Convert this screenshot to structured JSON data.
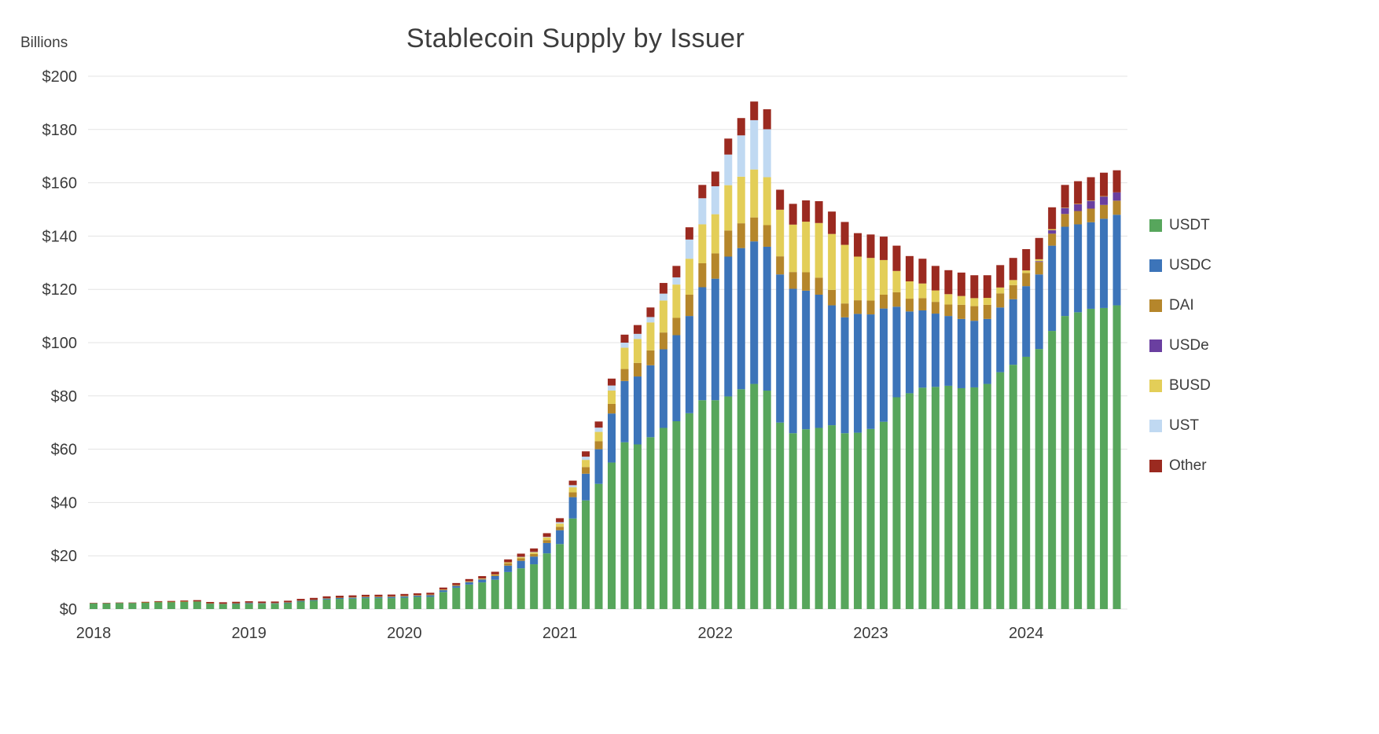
{
  "chart_data": {
    "type": "bar",
    "stacked": true,
    "title": "Stablecoin Supply by Issuer",
    "y_axis_label": "Billions",
    "ylim": [
      0,
      200
    ],
    "y_tick_step": 20,
    "y_ticks": [
      "$0",
      "$20",
      "$40",
      "$60",
      "$80",
      "$100",
      "$120",
      "$140",
      "$160",
      "$180",
      "$200"
    ],
    "x_tick_labels": [
      "2018",
      "2019",
      "2020",
      "2021",
      "2022",
      "2023",
      "2024"
    ],
    "grid": true,
    "legend_position": "right",
    "background_color": "#ffffff",
    "gridline_color": "#e3e3e3",
    "text_color": "#3b3b3b",
    "months": [
      "2018-01",
      "2018-02",
      "2018-03",
      "2018-04",
      "2018-05",
      "2018-06",
      "2018-07",
      "2018-08",
      "2018-09",
      "2018-10",
      "2018-11",
      "2018-12",
      "2019-01",
      "2019-02",
      "2019-03",
      "2019-04",
      "2019-05",
      "2019-06",
      "2019-07",
      "2019-08",
      "2019-09",
      "2019-10",
      "2019-11",
      "2019-12",
      "2020-01",
      "2020-02",
      "2020-03",
      "2020-04",
      "2020-05",
      "2020-06",
      "2020-07",
      "2020-08",
      "2020-09",
      "2020-10",
      "2020-11",
      "2020-12",
      "2021-01",
      "2021-02",
      "2021-03",
      "2021-04",
      "2021-05",
      "2021-06",
      "2021-07",
      "2021-08",
      "2021-09",
      "2021-10",
      "2021-11",
      "2021-12",
      "2022-01",
      "2022-02",
      "2022-03",
      "2022-04",
      "2022-05",
      "2022-06",
      "2022-07",
      "2022-08",
      "2022-09",
      "2022-10",
      "2022-11",
      "2022-12",
      "2023-01",
      "2023-02",
      "2023-03",
      "2023-04",
      "2023-05",
      "2023-06",
      "2023-07",
      "2023-08",
      "2023-09",
      "2023-10",
      "2023-11",
      "2023-12",
      "2024-01",
      "2024-02",
      "2024-03",
      "2024-04",
      "2024-05",
      "2024-06",
      "2024-07",
      "2024-08"
    ],
    "series": [
      {
        "name": "USDT",
        "color": "#57a65c",
        "values": [
          2.2,
          2.2,
          2.3,
          2.3,
          2.5,
          2.7,
          2.7,
          2.8,
          2.8,
          2.0,
          1.8,
          1.9,
          2.0,
          2.0,
          2.0,
          2.2,
          2.8,
          3.1,
          3.6,
          3.8,
          3.9,
          4.1,
          4.1,
          4.1,
          4.3,
          4.6,
          4.6,
          6.4,
          8.0,
          9.2,
          10.0,
          11.0,
          13.9,
          15.3,
          16.8,
          20.9,
          24.4,
          34.0,
          40.8,
          47.0,
          55.0,
          62.6,
          61.8,
          64.5,
          68.0,
          70.5,
          73.5,
          78.4,
          78.4,
          79.8,
          82.5,
          84.5,
          82.0,
          70.0,
          66.0,
          67.5,
          68.0,
          69.0,
          66.0,
          66.2,
          67.6,
          70.3,
          79.5,
          81.0,
          83.1,
          83.4,
          83.8,
          82.9,
          83.2,
          84.5,
          88.9,
          91.7,
          94.7,
          97.6,
          104.4,
          110.0,
          111.4,
          112.7,
          113.0,
          114.0
        ]
      },
      {
        "name": "USDC",
        "color": "#3c74b9",
        "values": [
          0,
          0,
          0,
          0,
          0,
          0,
          0,
          0,
          0.1,
          0.15,
          0.18,
          0.26,
          0.35,
          0.25,
          0.24,
          0.29,
          0.33,
          0.36,
          0.4,
          0.43,
          0.45,
          0.44,
          0.46,
          0.52,
          0.52,
          0.45,
          0.68,
          0.73,
          0.72,
          0.93,
          1.1,
          1.4,
          2.4,
          2.8,
          2.9,
          3.9,
          5.2,
          8.0,
          10.0,
          13.0,
          18.4,
          23.0,
          25.5,
          27.0,
          29.5,
          32.3,
          36.5,
          42.4,
          45.6,
          52.5,
          53.0,
          53.5,
          54.0,
          55.6,
          54.2,
          52.0,
          50.0,
          45.0,
          43.5,
          44.6,
          43.0,
          42.5,
          34.0,
          30.7,
          29.0,
          27.5,
          26.2,
          26.0,
          25.0,
          24.4,
          24.3,
          24.6,
          26.5,
          28.0,
          32.0,
          33.5,
          33.0,
          32.5,
          33.5,
          34.0
        ]
      },
      {
        "name": "DAI",
        "color": "#b5862b",
        "values": [
          0,
          0,
          0,
          0,
          0.02,
          0.03,
          0.04,
          0.05,
          0.05,
          0.06,
          0.07,
          0.07,
          0.08,
          0.08,
          0.09,
          0.09,
          0.1,
          0.08,
          0.08,
          0.08,
          0.08,
          0.09,
          0.1,
          0.1,
          0.11,
          0.12,
          0.09,
          0.09,
          0.12,
          0.13,
          0.19,
          0.41,
          0.89,
          0.93,
          1.0,
          1.1,
          1.3,
          1.8,
          2.5,
          3.0,
          3.6,
          4.5,
          5.1,
          5.6,
          6.3,
          6.5,
          8.0,
          9.0,
          9.5,
          9.8,
          9.3,
          9.0,
          8.1,
          6.8,
          6.3,
          6.9,
          6.4,
          5.8,
          5.2,
          5.1,
          5.2,
          5.2,
          5.4,
          4.8,
          4.6,
          4.4,
          4.3,
          5.3,
          5.5,
          5.3,
          5.3,
          5.3,
          4.9,
          4.7,
          4.5,
          4.8,
          5.0,
          5.1,
          5.2,
          5.3
        ]
      },
      {
        "name": "USDe",
        "color": "#6a3fa0",
        "values": [
          0,
          0,
          0,
          0,
          0,
          0,
          0,
          0,
          0,
          0,
          0,
          0,
          0,
          0,
          0,
          0,
          0,
          0,
          0,
          0,
          0,
          0,
          0,
          0,
          0,
          0,
          0,
          0,
          0,
          0,
          0,
          0,
          0,
          0,
          0,
          0,
          0,
          0,
          0,
          0,
          0,
          0,
          0,
          0,
          0,
          0,
          0,
          0,
          0,
          0,
          0,
          0,
          0,
          0,
          0,
          0,
          0,
          0,
          0,
          0,
          0,
          0,
          0,
          0,
          0,
          0,
          0,
          0,
          0,
          0,
          0,
          0,
          0,
          0.3,
          1.3,
          2.3,
          2.6,
          3.0,
          3.2,
          3.1
        ]
      },
      {
        "name": "BUSD",
        "color": "#e3ce58",
        "values": [
          0,
          0,
          0,
          0,
          0,
          0,
          0,
          0,
          0,
          0,
          0,
          0,
          0,
          0,
          0,
          0,
          0,
          0,
          0,
          0,
          0.01,
          0.02,
          0.02,
          0.02,
          0.03,
          0.04,
          0.05,
          0.1,
          0.13,
          0.15,
          0.18,
          0.2,
          0.35,
          0.55,
          0.65,
          1.0,
          1.2,
          1.9,
          2.7,
          3.5,
          5.0,
          8.0,
          9.0,
          10.5,
          12.0,
          12.5,
          13.5,
          14.6,
          14.7,
          17.0,
          17.5,
          18.0,
          18.0,
          17.5,
          17.8,
          19.0,
          20.5,
          21.0,
          22.0,
          16.4,
          16.0,
          13.0,
          8.0,
          6.5,
          5.5,
          4.3,
          3.9,
          3.3,
          3.0,
          2.6,
          2.2,
          1.9,
          1.0,
          0.7,
          0.4,
          0.1,
          0.1,
          0.1,
          0.1,
          0
        ]
      },
      {
        "name": "UST",
        "color": "#c0d9f2",
        "values": [
          0,
          0,
          0,
          0,
          0,
          0,
          0,
          0,
          0,
          0,
          0,
          0,
          0,
          0,
          0,
          0,
          0,
          0,
          0,
          0,
          0,
          0,
          0,
          0,
          0,
          0,
          0,
          0,
          0,
          0,
          0,
          0,
          0,
          0.02,
          0.1,
          0.18,
          0.5,
          0.8,
          1.2,
          1.6,
          1.9,
          1.9,
          1.9,
          2.0,
          2.6,
          2.7,
          7.2,
          9.8,
          10.5,
          11.5,
          15.5,
          18.5,
          18.0,
          0,
          0,
          0,
          0,
          0,
          0,
          0,
          0,
          0,
          0,
          0,
          0,
          0,
          0,
          0,
          0,
          0,
          0,
          0,
          0,
          0,
          0,
          0,
          0,
          0,
          0,
          0
        ]
      },
      {
        "name": "Other",
        "color": "#9b2a20",
        "values": [
          0.1,
          0.1,
          0.15,
          0.15,
          0.2,
          0.25,
          0.3,
          0.35,
          0.4,
          0.45,
          0.5,
          0.5,
          0.5,
          0.5,
          0.5,
          0.55,
          0.6,
          0.65,
          0.7,
          0.7,
          0.7,
          0.7,
          0.7,
          0.7,
          0.7,
          0.7,
          0.7,
          0.75,
          0.8,
          0.85,
          0.9,
          1.0,
          1.1,
          1.2,
          1.3,
          1.4,
          1.5,
          1.7,
          2.0,
          2.3,
          2.6,
          3.0,
          3.3,
          3.6,
          4.0,
          4.3,
          4.6,
          5.0,
          5.5,
          6.0,
          6.5,
          7.0,
          7.5,
          7.5,
          7.8,
          8.0,
          8.2,
          8.4,
          8.6,
          8.8,
          8.8,
          8.8,
          9.5,
          9.5,
          9.3,
          9.2,
          9.0,
          8.8,
          8.6,
          8.5,
          8.4,
          8.3,
          8.0,
          8.0,
          8.2,
          8.5,
          8.5,
          8.7,
          8.8,
          8.3
        ]
      }
    ]
  }
}
